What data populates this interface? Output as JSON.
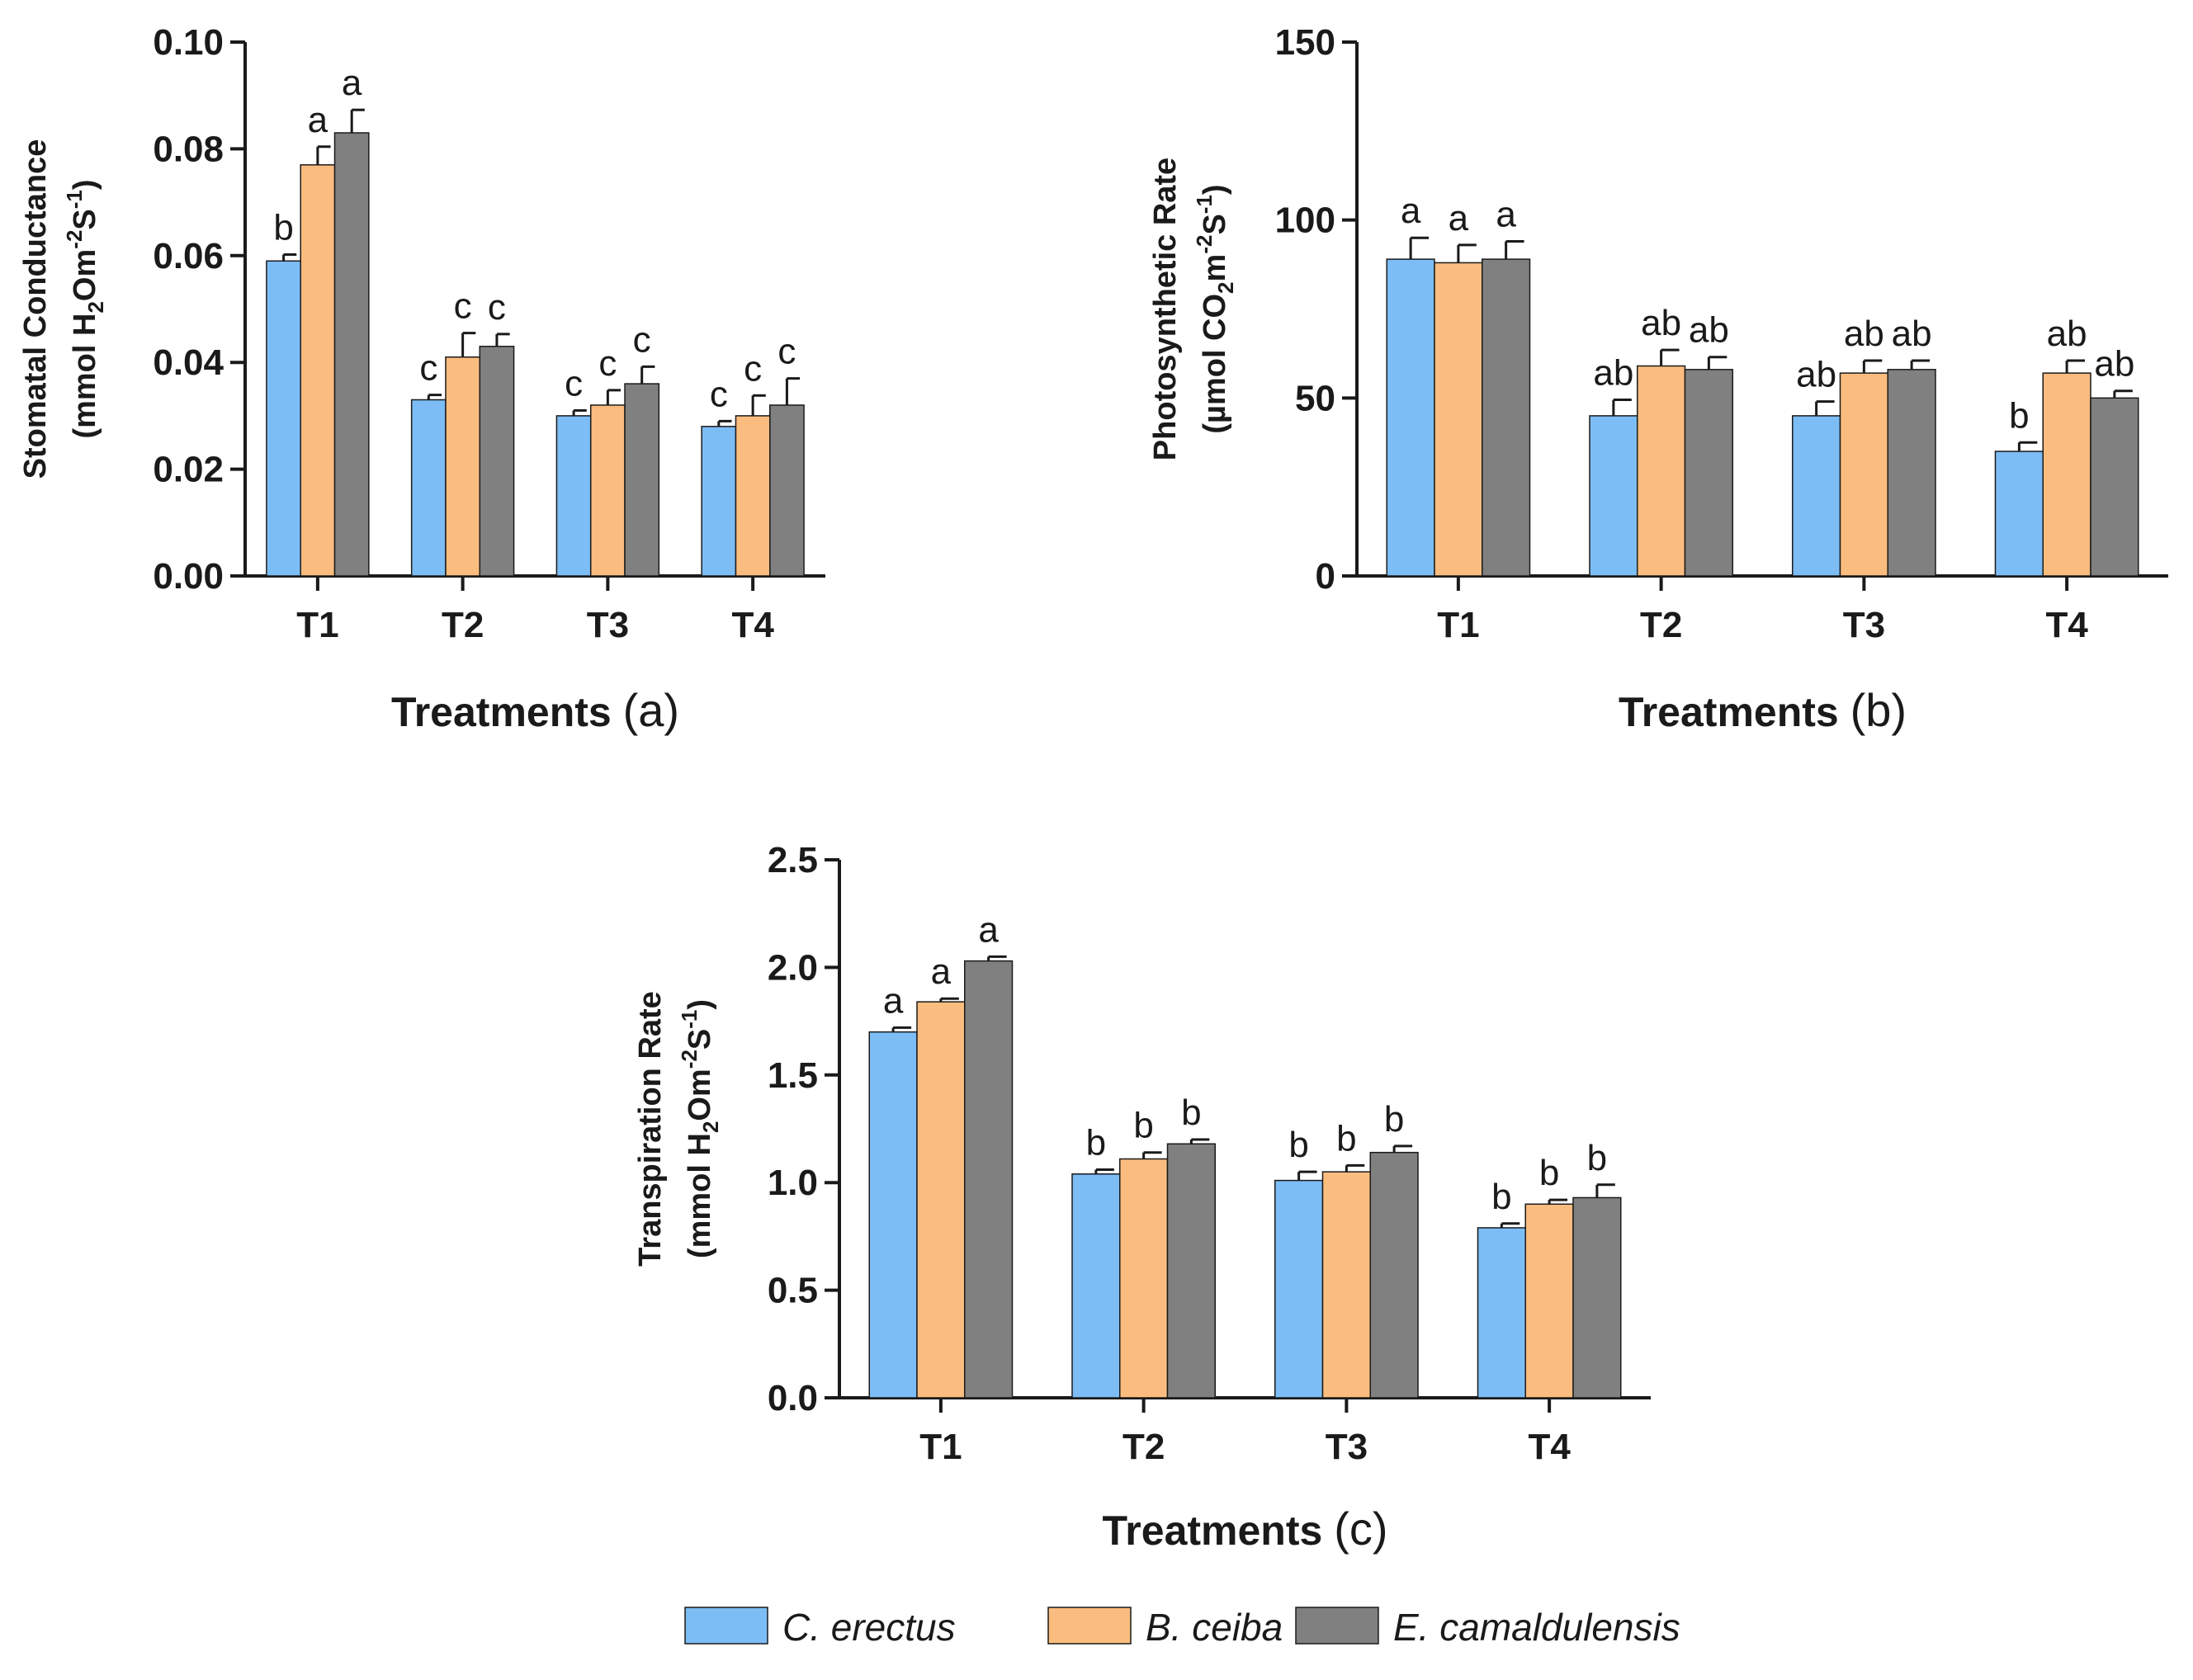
{
  "chart_data": [
    {
      "type": "bar",
      "title": "",
      "panel": "(a)",
      "xlabel": "Treatments",
      "ylabel_line1": "Stomatal Conductance",
      "ylabel_line2": [
        "(mmol H",
        "2",
        "Om",
        "-2",
        "S",
        "-1",
        ")"
      ],
      "categories": [
        "T1",
        "T2",
        "T3",
        "T4"
      ],
      "ylim": [
        0,
        0.1
      ],
      "yticks": [
        0.0,
        0.02,
        0.04,
        0.06,
        0.08,
        0.1
      ],
      "ytick_labels": [
        "0.00",
        "0.02",
        "0.04",
        "0.06",
        "0.08",
        "0.10"
      ],
      "series": [
        {
          "name": "C. erectus",
          "values": [
            0.059,
            0.033,
            0.03,
            0.028
          ],
          "errors": [
            0.0012,
            0.0009,
            0.001,
            0.001
          ],
          "labels": [
            "b",
            "c",
            "c",
            "c"
          ]
        },
        {
          "name": "B. ceiba",
          "values": [
            0.077,
            0.041,
            0.032,
            0.03
          ],
          "errors": [
            0.0034,
            0.0045,
            0.0028,
            0.0038
          ],
          "labels": [
            "a",
            "c",
            "c",
            "c"
          ]
        },
        {
          "name": "E. camaldulensis",
          "values": [
            0.083,
            0.043,
            0.036,
            0.032
          ],
          "errors": [
            0.0043,
            0.0023,
            0.0032,
            0.005
          ],
          "labels": [
            "a",
            "c",
            "c",
            "c"
          ]
        }
      ]
    },
    {
      "type": "bar",
      "title": "",
      "panel": "(b)",
      "xlabel": "Treatments",
      "ylabel_line1": "Photosynthetic Rate",
      "ylabel_line2": [
        "(µmol CO",
        "2",
        "m",
        "-2",
        "S",
        "-1",
        ")"
      ],
      "categories": [
        "T1",
        "T2",
        "T3",
        "T4"
      ],
      "ylim": [
        0,
        150
      ],
      "yticks": [
        0,
        50,
        100,
        150
      ],
      "ytick_labels": [
        "0",
        "50",
        "100",
        "150"
      ],
      "series": [
        {
          "name": "C. erectus",
          "values": [
            89,
            45,
            45,
            35
          ],
          "errors": [
            6.0,
            4.5,
            4.0,
            2.5
          ],
          "labels": [
            "a",
            "ab",
            "ab",
            "b"
          ]
        },
        {
          "name": "B. ceiba",
          "values": [
            88,
            59,
            57,
            57
          ],
          "errors": [
            5.0,
            4.5,
            3.5,
            3.5
          ],
          "labels": [
            "a",
            "ab",
            "ab",
            "ab"
          ]
        },
        {
          "name": "E. camaldulensis",
          "values": [
            89,
            58,
            58,
            50
          ],
          "errors": [
            5.0,
            3.5,
            2.5,
            2.0
          ],
          "labels": [
            "a",
            "ab",
            "ab",
            "ab"
          ]
        }
      ]
    },
    {
      "type": "bar",
      "title": "",
      "panel": "(c)",
      "xlabel": "Treatments",
      "ylabel_line1": "Transpiration Rate",
      "ylabel_line2": [
        "(mmol H",
        "2",
        "Om",
        "-2",
        "S",
        "-1",
        ")"
      ],
      "categories": [
        "T1",
        "T2",
        "T3",
        "T4"
      ],
      "ylim": [
        0,
        2.5
      ],
      "yticks": [
        0.0,
        0.5,
        1.0,
        1.5,
        2.0,
        2.5
      ],
      "ytick_labels": [
        "0.0",
        "0.5",
        "1.0",
        "1.5",
        "2.0",
        "2.5"
      ],
      "series": [
        {
          "name": "C. erectus",
          "values": [
            1.7,
            1.04,
            1.01,
            0.79
          ],
          "errors": [
            0.02,
            0.02,
            0.04,
            0.02
          ],
          "labels": [
            "a",
            "b",
            "b",
            "b"
          ]
        },
        {
          "name": "B. ceiba",
          "values": [
            1.84,
            1.11,
            1.05,
            0.9
          ],
          "errors": [
            0.015,
            0.03,
            0.03,
            0.02
          ],
          "labels": [
            "a",
            "b",
            "b",
            "b"
          ]
        },
        {
          "name": "E. camaldulensis",
          "values": [
            2.03,
            1.18,
            1.14,
            0.93
          ],
          "errors": [
            0.02,
            0.02,
            0.03,
            0.06
          ],
          "labels": [
            "a",
            "b",
            "b",
            "b"
          ]
        }
      ]
    }
  ],
  "legend": {
    "items": [
      {
        "label": "C. erectus",
        "color": "#7dbdf5"
      },
      {
        "label": "B. ceiba",
        "color": "#fbbd7f"
      },
      {
        "label": "E. camaldulensis",
        "color": "#808080"
      }
    ]
  }
}
